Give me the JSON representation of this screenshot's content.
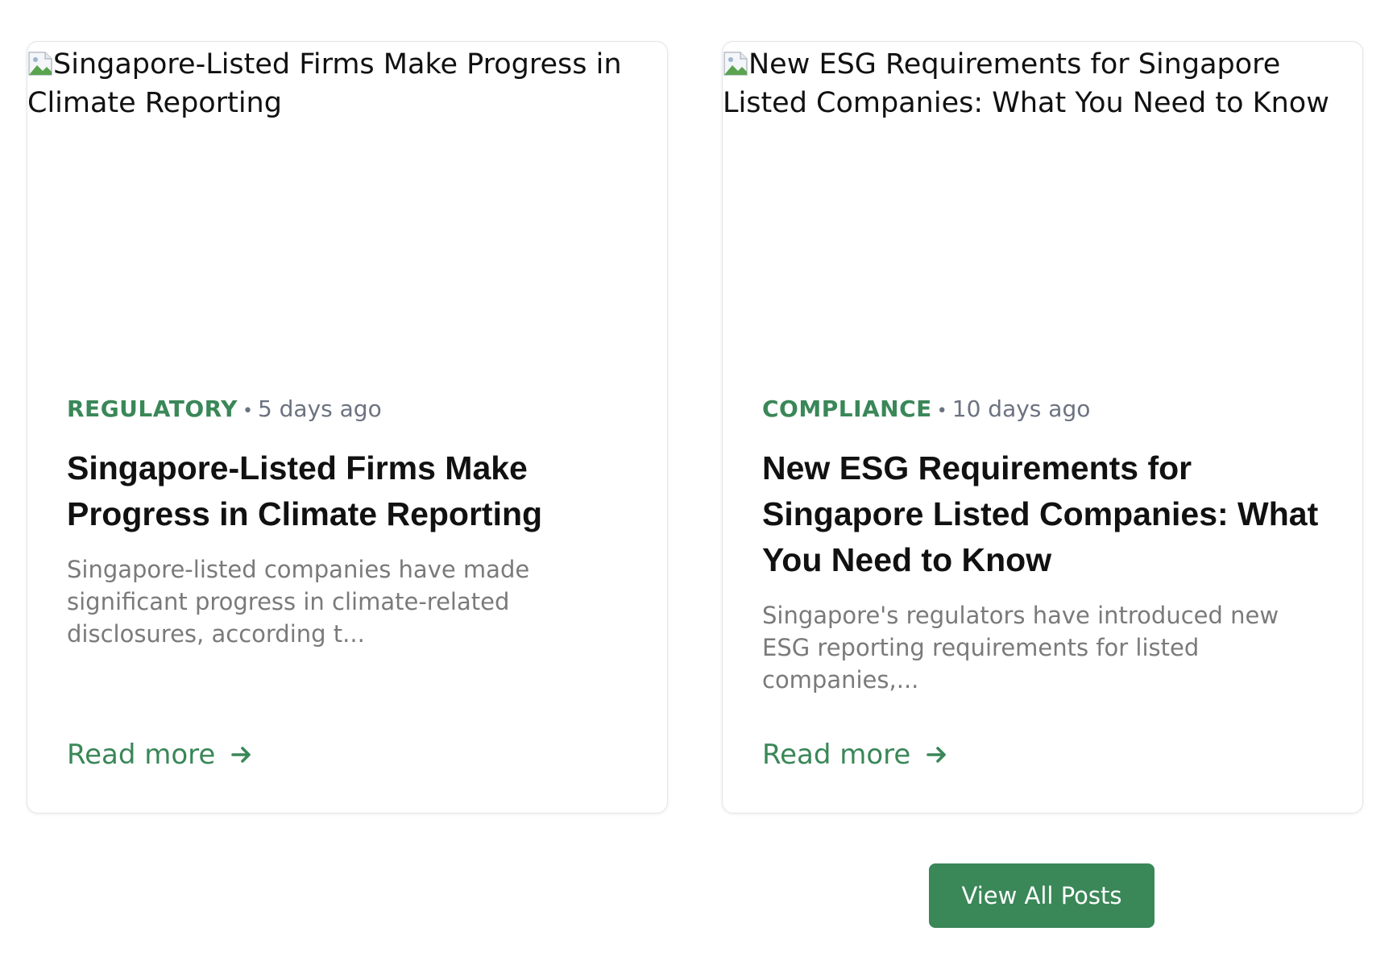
{
  "posts": [
    {
      "image_alt": "Singapore-Listed Firms Make Progress in Climate Reporting",
      "category": "REGULATORY",
      "separator": "•",
      "date": "5 days ago",
      "title": "Singapore-Listed Firms Make Progress in Climate Reporting",
      "excerpt": "Singapore-listed companies have made significant progress in climate-related disclosures, according t...",
      "read_more": "Read more"
    },
    {
      "image_alt": "New ESG Requirements for Singapore Listed Companies: What You Need to Know",
      "category": "COMPLIANCE",
      "separator": "•",
      "date": "10 days ago",
      "title": "New ESG Requirements for Singapore Listed Companies: What You Need to Know",
      "excerpt": "Singapore's regulators have introduced new ESG reporting requirements for listed companies,...",
      "read_more": "Read more"
    }
  ],
  "view_all_label": "View All Posts",
  "colors": {
    "accent": "#3a8758",
    "text": "#111111",
    "muted": "#6b7280",
    "excerpt": "#7a7a7a"
  },
  "icons": {
    "image_placeholder": "broken-image-icon",
    "read_more": "arrow-right-icon"
  }
}
